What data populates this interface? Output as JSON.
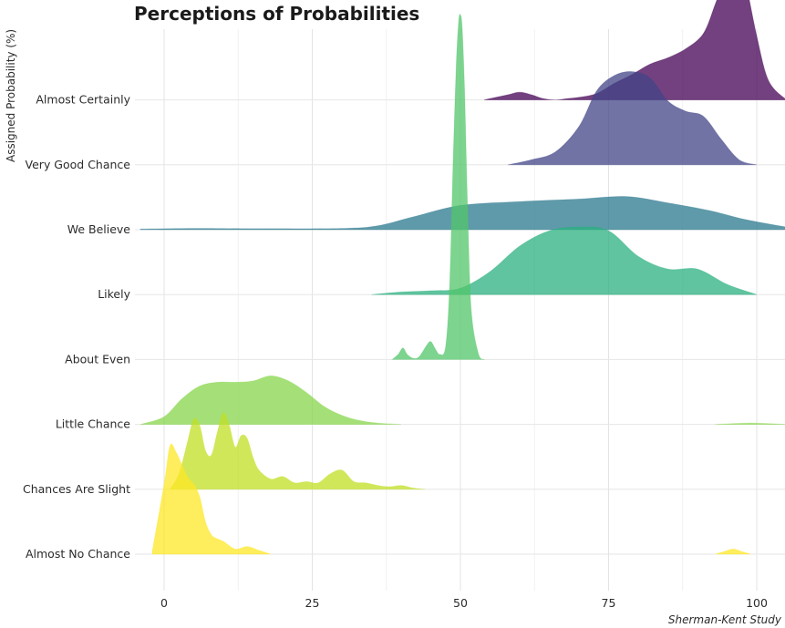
{
  "chart_data": {
    "type": "ridgeline",
    "title": "Perceptions of Probabilities",
    "xlabel": "",
    "ylabel": "Assigned Probability (%)",
    "caption": "Sherman-Kent Study",
    "xlim": [
      -4,
      105
    ],
    "xticks": [
      0,
      25,
      50,
      75,
      100
    ],
    "grid": true,
    "categories": [
      "Almost No Chance",
      "Chances Are Slight",
      "Little Chance",
      "About Even",
      "Likely",
      "We Believe",
      "Very Good Chance",
      "Almost Certainly"
    ],
    "series": [
      {
        "name": "Almost No Chance",
        "color": "#fde725",
        "x": [
          -2,
          0,
          1,
          2,
          3,
          4,
          5,
          6,
          7,
          8,
          9,
          10,
          12,
          14,
          16,
          18
        ],
        "y": [
          0.02,
          0.55,
          0.85,
          0.8,
          0.7,
          0.6,
          0.55,
          0.45,
          0.25,
          0.15,
          0.12,
          0.1,
          0.04,
          0.06,
          0.03,
          0
        ],
        "extra_x": [
          93,
          94.5,
          96,
          97.5,
          99
        ],
        "extra_y": [
          0,
          0.02,
          0.04,
          0.02,
          0
        ]
      },
      {
        "name": "Chances Are Slight",
        "color": "#c2df23",
        "x": [
          1,
          2.5,
          4,
          5,
          6,
          7,
          8,
          9,
          10,
          11,
          12,
          13,
          14,
          15,
          16,
          18,
          20,
          22,
          24,
          26,
          28,
          30,
          32,
          34,
          36,
          38,
          40,
          42,
          44
        ],
        "y": [
          0,
          0.12,
          0.38,
          0.55,
          0.5,
          0.3,
          0.27,
          0.45,
          0.6,
          0.5,
          0.33,
          0.42,
          0.4,
          0.25,
          0.15,
          0.08,
          0.1,
          0.05,
          0.06,
          0.05,
          0.12,
          0.15,
          0.06,
          0.05,
          0.03,
          0.02,
          0.03,
          0.01,
          0
        ],
        "extra_x": [],
        "extra_y": []
      },
      {
        "name": "Little Chance",
        "color": "#86d549",
        "x": [
          -4,
          0,
          3,
          6,
          9,
          12,
          15,
          18,
          21,
          24,
          27,
          30,
          33,
          36,
          40
        ],
        "y": [
          0,
          0.06,
          0.2,
          0.3,
          0.33,
          0.33,
          0.34,
          0.38,
          0.34,
          0.25,
          0.14,
          0.07,
          0.03,
          0.01,
          0
        ],
        "extra_x": [
          93,
          96,
          99,
          102,
          105
        ],
        "extra_y": [
          0,
          0.006,
          0.01,
          0.006,
          0
        ]
      },
      {
        "name": "About Even",
        "color": "#52c569",
        "x": [
          38.5,
          39.5,
          40.3,
          41,
          42,
          43,
          44.3,
          45,
          45.8,
          46.5,
          47.5,
          48.2,
          48.8,
          49.3,
          49.7,
          50,
          50.3,
          50.7,
          51.2,
          51.8,
          53,
          54
        ],
        "y": [
          0,
          0.04,
          0.09,
          0.04,
          0.01,
          0.02,
          0.11,
          0.14,
          0.08,
          0.04,
          0.1,
          0.6,
          1.6,
          2.3,
          2.65,
          2.7,
          2.6,
          2.1,
          1.2,
          0.4,
          0.05,
          0
        ],
        "extra_x": [],
        "extra_y": []
      },
      {
        "name": "Likely",
        "color": "#2ab07f",
        "x": [
          35,
          40,
          45,
          50,
          55,
          60,
          65,
          70,
          75,
          80,
          85,
          90,
          95,
          100
        ],
        "y": [
          0,
          0.02,
          0.03,
          0.05,
          0.18,
          0.38,
          0.5,
          0.53,
          0.5,
          0.3,
          0.2,
          0.2,
          0.08,
          0
        ],
        "extra_x": [],
        "extra_y": []
      },
      {
        "name": "We Believe",
        "color": "#2a788e",
        "x": [
          -4,
          5,
          15,
          30,
          36,
          42,
          50,
          60,
          70,
          78,
          85,
          92,
          98,
          105
        ],
        "y": [
          0.005,
          0.01,
          0.008,
          0.01,
          0.03,
          0.1,
          0.19,
          0.22,
          0.24,
          0.26,
          0.21,
          0.15,
          0.08,
          0.02
        ],
        "extra_x": [],
        "extra_y": []
      },
      {
        "name": "Very Good Chance",
        "color": "#414487",
        "x": [
          58,
          62,
          66,
          70,
          73,
          76,
          79,
          82,
          85,
          88,
          91,
          94,
          97,
          100
        ],
        "y": [
          0,
          0.04,
          0.1,
          0.3,
          0.58,
          0.7,
          0.73,
          0.68,
          0.5,
          0.42,
          0.38,
          0.2,
          0.04,
          0
        ],
        "extra_x": [],
        "extra_y": []
      },
      {
        "name": "Almost Certainly",
        "color": "#440154",
        "x": [
          54,
          56,
          58,
          60,
          62,
          64,
          66,
          68,
          70,
          73,
          76,
          79,
          82,
          85,
          88,
          91,
          93,
          95,
          96,
          97,
          98,
          100,
          102,
          105
        ],
        "y": [
          0,
          0.02,
          0.04,
          0.06,
          0.04,
          0.01,
          0,
          0.01,
          0.02,
          0.05,
          0.13,
          0.2,
          0.28,
          0.33,
          0.4,
          0.52,
          0.75,
          1.0,
          1.1,
          1.08,
          0.95,
          0.5,
          0.15,
          0
        ],
        "extra_x": [],
        "extra_y": []
      }
    ]
  }
}
